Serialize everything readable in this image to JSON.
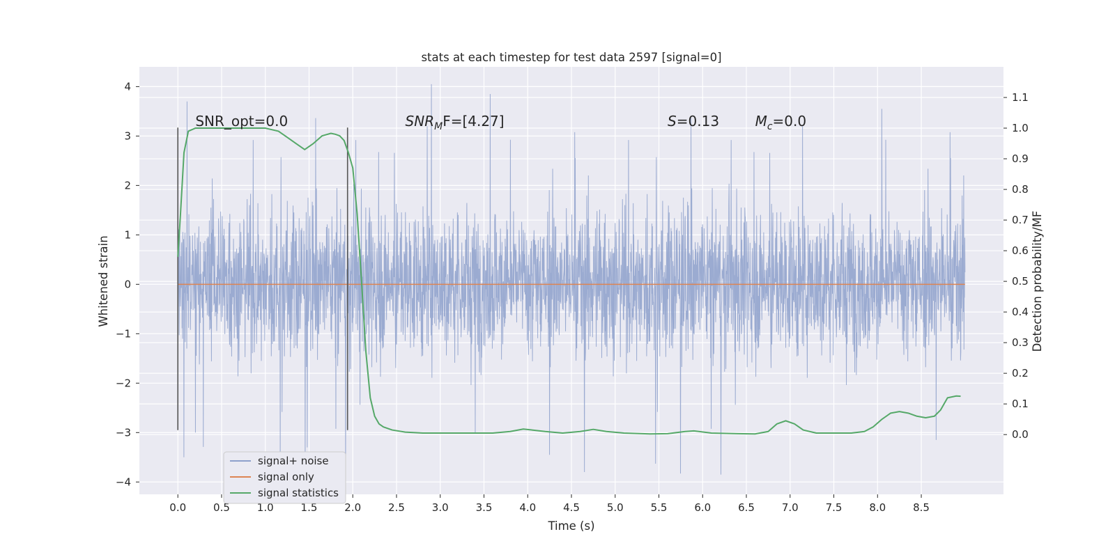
{
  "chart_data": {
    "type": "line",
    "title": "stats at each timestep for test data 2597 [signal=0]",
    "xlabel": "Time (s)",
    "ylabel": "Whitened strain",
    "y2label": "Detection probability/MF",
    "xlim": [
      -0.44,
      9.44
    ],
    "ylim": [
      -4.25,
      4.4
    ],
    "y2lim": [
      -0.195,
      1.2
    ],
    "xticks": [
      0.0,
      0.5,
      1.0,
      1.5,
      2.0,
      2.5,
      3.0,
      3.5,
      4.0,
      4.5,
      5.0,
      5.5,
      6.0,
      6.5,
      7.0,
      7.5,
      8.0,
      8.5
    ],
    "xtick_labels": [
      "0.0",
      "0.5",
      "1.0",
      "1.5",
      "2.0",
      "2.5",
      "3.0",
      "3.5",
      "4.0",
      "4.5",
      "5.0",
      "5.5",
      "6.0",
      "6.5",
      "7.0",
      "7.5",
      "8.0",
      "8.5"
    ],
    "yticks": [
      4,
      3,
      2,
      1,
      0,
      -1,
      -2,
      -3,
      -4
    ],
    "ytick_labels": [
      "4",
      "3",
      "2",
      "1",
      "0",
      "−1",
      "−2",
      "−3",
      "−4"
    ],
    "y2ticks": [
      1.1,
      1.0,
      0.9,
      0.8,
      0.7,
      0.6,
      0.5,
      0.4,
      0.3,
      0.2,
      0.1,
      0.0
    ],
    "y2tick_labels": [
      "1.1",
      "1.0",
      "0.9",
      "0.8",
      "0.7",
      "0.6",
      "0.5",
      "0.4",
      "0.3",
      "0.2",
      "0.1",
      "0.0"
    ],
    "grid": true,
    "legend_position": "lower-left",
    "series": [
      {
        "name": "signal+ noise",
        "axis": "left",
        "color": "#8da0cb",
        "description": "whitened noise trace from 0.0 to ~9.0 s, dense band roughly between -1.2 and 1.3 with spikes up to ~4.0 and down to ~-3.8",
        "t_range": [
          0.0,
          9.0
        ],
        "band": [
          -1.2,
          1.3
        ],
        "spikes": [
          {
            "t": 0.07,
            "v": -3.5
          },
          {
            "t": 0.2,
            "v": -3.0
          },
          {
            "t": 1.48,
            "v": -3.3
          },
          {
            "t": 2.9,
            "v": 4.05
          },
          {
            "t": 3.57,
            "v": 3.85
          },
          {
            "t": 3.4,
            "v": -3.0
          },
          {
            "t": 4.25,
            "v": -3.45
          },
          {
            "t": 4.65,
            "v": -3.8
          },
          {
            "t": 8.05,
            "v": 3.55
          },
          {
            "t": 8.67,
            "v": -3.15
          }
        ]
      },
      {
        "name": "signal only",
        "axis": "left",
        "color": "#dd8452",
        "x": [
          0.0,
          9.0
        ],
        "y": [
          0.0,
          0.0
        ]
      },
      {
        "name": "signal statistics",
        "axis": "right",
        "color": "#55a868",
        "x": [
          0.0,
          0.03,
          0.07,
          0.12,
          0.2,
          0.3,
          0.5,
          0.8,
          1.0,
          1.15,
          1.25,
          1.35,
          1.45,
          1.55,
          1.65,
          1.75,
          1.8,
          1.85,
          1.9,
          1.95,
          2.0,
          2.05,
          2.1,
          2.15,
          2.2,
          2.25,
          2.3,
          2.35,
          2.45,
          2.6,
          2.8,
          3.0,
          3.3,
          3.6,
          3.8,
          3.95,
          4.05,
          4.2,
          4.4,
          4.6,
          4.75,
          4.9,
          5.1,
          5.4,
          5.6,
          5.8,
          5.9,
          6.1,
          6.4,
          6.6,
          6.75,
          6.85,
          6.95,
          7.05,
          7.15,
          7.3,
          7.5,
          7.7,
          7.85,
          7.95,
          8.05,
          8.15,
          8.25,
          8.35,
          8.45,
          8.55,
          8.65,
          8.72,
          8.8,
          8.9,
          8.95
        ],
        "y": [
          0.58,
          0.72,
          0.92,
          0.99,
          1.0,
          1.0,
          1.0,
          1.0,
          1.0,
          0.99,
          0.97,
          0.95,
          0.93,
          0.95,
          0.975,
          0.983,
          0.98,
          0.975,
          0.96,
          0.92,
          0.87,
          0.72,
          0.5,
          0.27,
          0.12,
          0.06,
          0.035,
          0.025,
          0.015,
          0.008,
          0.005,
          0.005,
          0.005,
          0.005,
          0.01,
          0.018,
          0.015,
          0.01,
          0.005,
          0.01,
          0.017,
          0.01,
          0.005,
          0.002,
          0.003,
          0.01,
          0.012,
          0.005,
          0.003,
          0.002,
          0.01,
          0.035,
          0.045,
          0.035,
          0.015,
          0.005,
          0.005,
          0.005,
          0.01,
          0.025,
          0.05,
          0.07,
          0.075,
          0.07,
          0.06,
          0.055,
          0.06,
          0.08,
          0.12,
          0.126,
          0.125
        ]
      }
    ],
    "vlines": [
      {
        "t": 0.0,
        "ymin": -2.95,
        "ymax": 3.17,
        "color": "#555555"
      },
      {
        "t": 1.94,
        "ymin": -2.95,
        "ymax": 3.17,
        "color": "#555555"
      }
    ],
    "annotations": [
      {
        "id": "snr-opt",
        "t": 0.2,
        "v": 3.2,
        "text": "SNR_opt=0.0"
      },
      {
        "id": "snr-mf",
        "t": 2.6,
        "v": 3.2,
        "base": "SNR",
        "sub": "M",
        "rest": "F=[4.27]"
      },
      {
        "id": "s-stat",
        "t": 5.6,
        "v": 3.2,
        "base": "S",
        "rest": "=0.13"
      },
      {
        "id": "mc-stat",
        "t": 6.6,
        "v": 3.2,
        "base": "M",
        "sub": "c",
        "rest": "=0.0"
      }
    ]
  }
}
